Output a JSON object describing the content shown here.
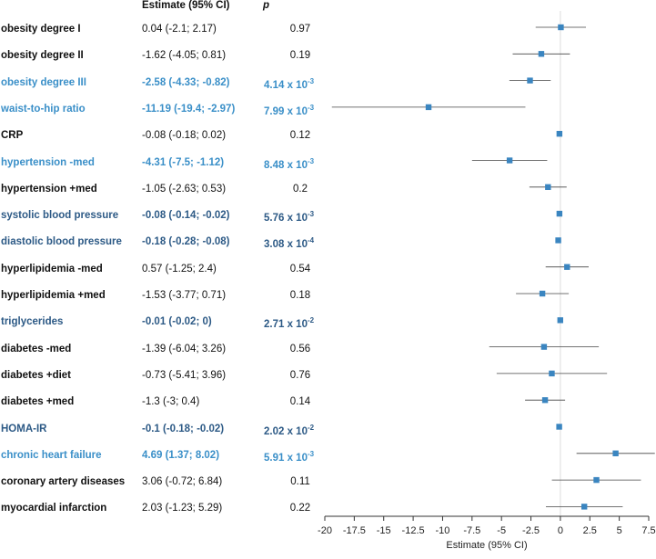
{
  "headers": {
    "estimate": "Estimate (95% CI)",
    "p": "p"
  },
  "rows": [
    {
      "label": "obesity degree I",
      "estimate_text": "0.04 (-2.1; 2.17)",
      "p_text": "0.97",
      "p_exp": "",
      "style": "plain",
      "est": 0.04,
      "lo": -2.1,
      "hi": 2.17
    },
    {
      "label": "obesity degree II",
      "estimate_text": "-1.62 (-4.05; 0.81)",
      "p_text": "0.19",
      "p_exp": "",
      "style": "plain",
      "est": -1.62,
      "lo": -4.05,
      "hi": 0.81
    },
    {
      "label": "obesity degree III",
      "estimate_text": "-2.58 (-4.33; -0.82)",
      "p_text": "4.14 x 10",
      "p_exp": "-3",
      "style": "light",
      "est": -2.58,
      "lo": -4.33,
      "hi": -0.82
    },
    {
      "label": "waist-to-hip ratio",
      "estimate_text": "-11.19 (-19.4; -2.97)",
      "p_text": "7.99 x 10",
      "p_exp": "-3",
      "style": "light",
      "est": -11.19,
      "lo": -19.4,
      "hi": -2.97
    },
    {
      "label": "CRP",
      "estimate_text": "-0.08 (-0.18; 0.02)",
      "p_text": "0.12",
      "p_exp": "",
      "style": "plain",
      "est": -0.08,
      "lo": -0.18,
      "hi": 0.02
    },
    {
      "label": "hypertension -med",
      "estimate_text": "-4.31 (-7.5; -1.12)",
      "p_text": "8.48 x 10",
      "p_exp": "-3",
      "style": "light",
      "est": -4.31,
      "lo": -7.5,
      "hi": -1.12
    },
    {
      "label": "hypertension +med",
      "estimate_text": "-1.05 (-2.63; 0.53)",
      "p_text": "0.2",
      "p_exp": "",
      "style": "plain",
      "est": -1.05,
      "lo": -2.63,
      "hi": 0.53
    },
    {
      "label": "systolic blood pressure",
      "estimate_text": "-0.08 (-0.14; -0.02)",
      "p_text": "5.76 x 10",
      "p_exp": "-3",
      "style": "dark",
      "est": -0.08,
      "lo": -0.14,
      "hi": -0.02
    },
    {
      "label": "diastolic blood pressure",
      "estimate_text": "-0.18 (-0.28; -0.08)",
      "p_text": "3.08 x 10",
      "p_exp": "-4",
      "style": "dark",
      "est": -0.18,
      "lo": -0.28,
      "hi": -0.08
    },
    {
      "label": "hyperlipidemia -med",
      "estimate_text": "0.57 (-1.25; 2.4)",
      "p_text": "0.54",
      "p_exp": "",
      "style": "plain",
      "est": 0.57,
      "lo": -1.25,
      "hi": 2.4
    },
    {
      "label": "hyperlipidemia +med",
      "estimate_text": "-1.53 (-3.77; 0.71)",
      "p_text": "0.18",
      "p_exp": "",
      "style": "plain",
      "est": -1.53,
      "lo": -3.77,
      "hi": 0.71
    },
    {
      "label": "triglycerides",
      "estimate_text": "-0.01 (-0.02; 0)",
      "p_text": "2.71 x 10",
      "p_exp": "-2",
      "style": "dark",
      "est": -0.01,
      "lo": -0.02,
      "hi": 0
    },
    {
      "label": "diabetes -med",
      "estimate_text": "-1.39 (-6.04; 3.26)",
      "p_text": "0.56",
      "p_exp": "",
      "style": "plain",
      "est": -1.39,
      "lo": -6.04,
      "hi": 3.26
    },
    {
      "label": "diabetes +diet",
      "estimate_text": "-0.73 (-5.41; 3.96)",
      "p_text": "0.76",
      "p_exp": "",
      "style": "plain",
      "est": -0.73,
      "lo": -5.41,
      "hi": 3.96
    },
    {
      "label": "diabetes +med",
      "estimate_text": "-1.3 (-3; 0.4)",
      "p_text": "0.14",
      "p_exp": "",
      "style": "plain",
      "est": -1.3,
      "lo": -3,
      "hi": 0.4
    },
    {
      "label": "HOMA-IR",
      "estimate_text": "-0.1 (-0.18; -0.02)",
      "p_text": "2.02 x 10",
      "p_exp": "-2",
      "style": "dark",
      "est": -0.1,
      "lo": -0.18,
      "hi": -0.02
    },
    {
      "label": "chronic heart failure",
      "estimate_text": "4.69 (1.37; 8.02)",
      "p_text": "5.91 x 10",
      "p_exp": "-3",
      "style": "light",
      "est": 4.69,
      "lo": 1.37,
      "hi": 8.02
    },
    {
      "label": "coronary artery diseases",
      "estimate_text": "3.06 (-0.72; 6.84)",
      "p_text": "0.11",
      "p_exp": "",
      "style": "plain",
      "est": 3.06,
      "lo": -0.72,
      "hi": 6.84
    },
    {
      "label": "myocardial infarction",
      "estimate_text": "2.03 (-1.23; 5.29)",
      "p_text": "0.22",
      "p_exp": "",
      "style": "plain",
      "est": 2.03,
      "lo": -1.23,
      "hi": 5.29
    }
  ],
  "chart_data": {
    "type": "scatter",
    "subtype": "forest-plot",
    "xlabel": "Estimate (95% CI)",
    "xlim": [
      -20,
      7.5
    ],
    "xticks": [
      -20,
      -17.5,
      -15,
      -12.5,
      -10,
      -7.5,
      -5,
      -2.5,
      0,
      2.5,
      5,
      7.5
    ],
    "xtick_labels": [
      "-20",
      "-17.5",
      "-15",
      "-12.5",
      "-10",
      "-7.5",
      "-5",
      "-2.5",
      "0",
      "2.5",
      "5",
      "7.5"
    ],
    "reference_line": 0,
    "colors": {
      "marker": "#3a85c0",
      "ci": "#444444",
      "ref": "#dddddd",
      "axis": "#333333"
    }
  }
}
